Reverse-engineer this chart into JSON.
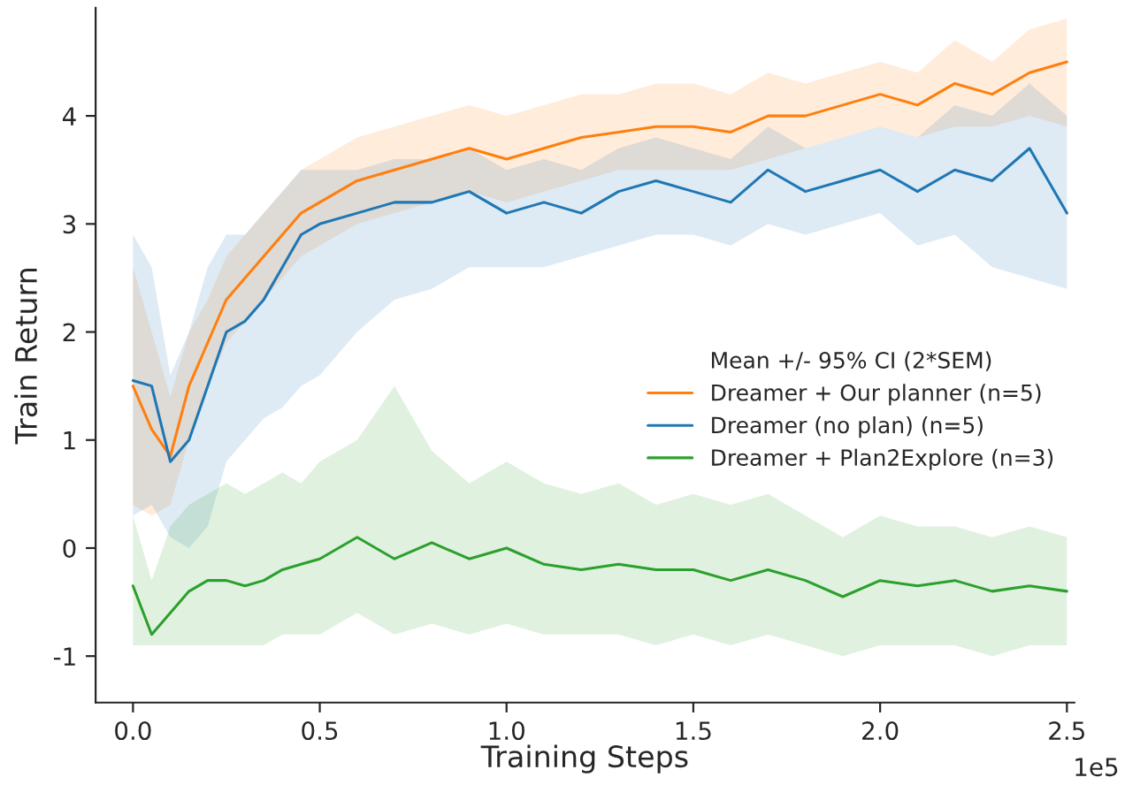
{
  "chart_data": {
    "type": "line",
    "xlabel": "Training Steps",
    "ylabel": "Train Return",
    "legend_title": "Mean +/- 95% CI (2*SEM)",
    "legend": "right",
    "grid": false,
    "annotations": [
      "1e5"
    ],
    "x": [
      0,
      0.05,
      0.1,
      0.15,
      0.2,
      0.25,
      0.3,
      0.35,
      0.4,
      0.45,
      0.5,
      0.6,
      0.7,
      0.8,
      0.9,
      1.0,
      1.1,
      1.2,
      1.3,
      1.4,
      1.5,
      1.6,
      1.7,
      1.8,
      1.9,
      2.0,
      2.1,
      2.2,
      2.3,
      2.4,
      2.5
    ],
    "xlim": [
      -0.1,
      2.52
    ],
    "xticks": [
      {
        "value": 0,
        "label": "0.0"
      },
      0.5,
      {
        "value": 1,
        "label": "1.0"
      },
      1.5,
      {
        "value": 2,
        "label": "2.0"
      },
      2.5
    ],
    "ylim": [
      -1.43,
      5.0
    ],
    "yticks": [
      -1,
      0,
      1,
      2,
      3,
      4
    ],
    "series": [
      {
        "name": "Dreamer + Our planner (n=5)",
        "color": "#ff7f0e",
        "values": [
          1.5,
          1.1,
          0.85,
          1.5,
          1.9,
          2.3,
          2.5,
          2.7,
          2.9,
          3.1,
          3.2,
          3.4,
          3.5,
          3.6,
          3.7,
          3.6,
          3.7,
          3.8,
          3.85,
          3.9,
          3.9,
          3.85,
          4.0,
          4.0,
          4.1,
          4.2,
          4.1,
          4.3,
          4.2,
          4.4,
          4.5
        ],
        "lower": [
          0.4,
          0.3,
          0.4,
          1.0,
          1.5,
          1.9,
          2.1,
          2.3,
          2.5,
          2.7,
          2.8,
          3.0,
          3.1,
          3.2,
          3.3,
          3.2,
          3.3,
          3.4,
          3.5,
          3.5,
          3.5,
          3.5,
          3.6,
          3.7,
          3.8,
          3.9,
          3.8,
          3.9,
          3.9,
          4.0,
          3.9
        ],
        "upper": [
          2.6,
          2.0,
          1.4,
          2.0,
          2.3,
          2.7,
          2.9,
          3.1,
          3.3,
          3.5,
          3.6,
          3.8,
          3.9,
          4.0,
          4.1,
          4.0,
          4.1,
          4.2,
          4.2,
          4.3,
          4.3,
          4.2,
          4.4,
          4.3,
          4.4,
          4.5,
          4.4,
          4.7,
          4.5,
          4.8,
          4.9
        ]
      },
      {
        "name": "Dreamer (no plan) (n=5)",
        "color": "#1f77b4",
        "values": [
          1.55,
          1.5,
          0.8,
          1.0,
          1.5,
          2.0,
          2.1,
          2.3,
          2.6,
          2.9,
          3.0,
          3.1,
          3.2,
          3.2,
          3.3,
          3.1,
          3.2,
          3.1,
          3.3,
          3.4,
          3.3,
          3.2,
          3.5,
          3.3,
          3.4,
          3.5,
          3.3,
          3.5,
          3.4,
          3.7,
          3.1
        ],
        "lower": [
          0.3,
          0.4,
          0.1,
          0.0,
          0.2,
          0.8,
          1.0,
          1.2,
          1.3,
          1.5,
          1.6,
          2.0,
          2.3,
          2.4,
          2.6,
          2.6,
          2.6,
          2.7,
          2.8,
          2.9,
          2.9,
          2.8,
          3.0,
          2.9,
          3.0,
          3.1,
          2.8,
          2.9,
          2.6,
          2.5,
          2.4
        ],
        "upper": [
          2.9,
          2.6,
          1.6,
          2.0,
          2.6,
          2.9,
          2.9,
          3.1,
          3.3,
          3.5,
          3.5,
          3.5,
          3.6,
          3.6,
          3.7,
          3.5,
          3.6,
          3.5,
          3.7,
          3.8,
          3.7,
          3.6,
          3.9,
          3.7,
          3.8,
          3.9,
          3.8,
          4.1,
          4.0,
          4.3,
          4.0
        ]
      },
      {
        "name": "Dreamer + Plan2Explore (n=3)",
        "color": "#2ca02c",
        "values": [
          -0.35,
          -0.8,
          -0.6,
          -0.4,
          -0.3,
          -0.3,
          -0.35,
          -0.3,
          -0.2,
          -0.15,
          -0.1,
          0.1,
          -0.1,
          0.05,
          -0.1,
          0.0,
          -0.15,
          -0.2,
          -0.15,
          -0.2,
          -0.2,
          -0.3,
          -0.2,
          -0.3,
          -0.45,
          -0.3,
          -0.35,
          -0.3,
          -0.4,
          -0.35,
          -0.4
        ],
        "lower": [
          -0.9,
          -0.9,
          -0.9,
          -0.9,
          -0.9,
          -0.9,
          -0.9,
          -0.9,
          -0.8,
          -0.8,
          -0.8,
          -0.6,
          -0.8,
          -0.7,
          -0.8,
          -0.7,
          -0.8,
          -0.8,
          -0.8,
          -0.9,
          -0.8,
          -0.9,
          -0.8,
          -0.9,
          -1.0,
          -0.9,
          -0.9,
          -0.9,
          -1.0,
          -0.9,
          -0.9
        ],
        "upper": [
          0.3,
          -0.3,
          0.2,
          0.4,
          0.5,
          0.6,
          0.5,
          0.6,
          0.7,
          0.6,
          0.8,
          1.0,
          1.5,
          0.9,
          0.6,
          0.8,
          0.6,
          0.5,
          0.6,
          0.4,
          0.5,
          0.4,
          0.5,
          0.3,
          0.1,
          0.3,
          0.2,
          0.2,
          0.1,
          0.2,
          0.1
        ]
      }
    ]
  }
}
